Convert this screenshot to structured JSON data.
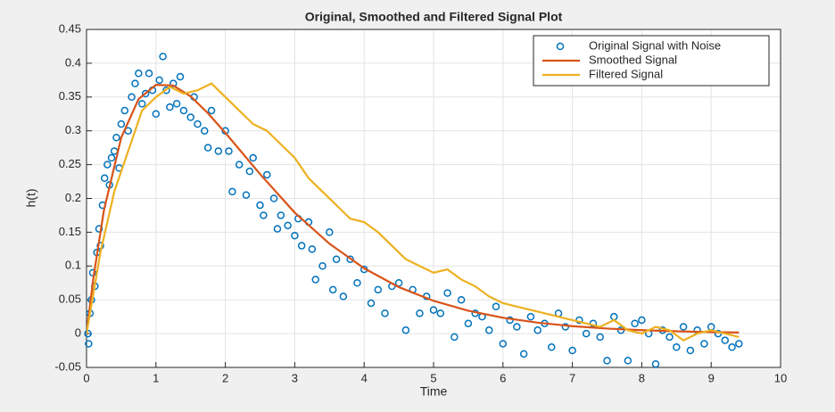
{
  "chart_data": {
    "type": "line",
    "title": "Original, Smoothed and Filtered Signal Plot",
    "xlabel": "Time",
    "ylabel": "h(t)",
    "xlim": [
      0,
      10
    ],
    "ylim": [
      -0.05,
      0.45
    ],
    "xticks": [
      0,
      1,
      2,
      3,
      4,
      5,
      6,
      7,
      8,
      9,
      10
    ],
    "yticks": [
      -0.05,
      0,
      0.05,
      0.1,
      0.15,
      0.2,
      0.25,
      0.3,
      0.35,
      0.4,
      0.45
    ],
    "grid": true,
    "legend": "northeast",
    "series": [
      {
        "name": "Original Signal with Noise",
        "color": "#0072bd",
        "marker": "o",
        "x": [
          0.02,
          0.03,
          0.05,
          0.07,
          0.09,
          0.12,
          0.15,
          0.18,
          0.2,
          0.23,
          0.26,
          0.3,
          0.33,
          0.36,
          0.4,
          0.43,
          0.47,
          0.5,
          0.55,
          0.6,
          0.65,
          0.7,
          0.75,
          0.8,
          0.85,
          0.9,
          0.95,
          1.0,
          1.05,
          1.1,
          1.15,
          1.2,
          1.25,
          1.3,
          1.35,
          1.4,
          1.5,
          1.55,
          1.6,
          1.7,
          1.75,
          1.8,
          1.9,
          2.0,
          2.05,
          2.1,
          2.2,
          2.3,
          2.35,
          2.4,
          2.5,
          2.55,
          2.6,
          2.7,
          2.75,
          2.8,
          2.9,
          3.0,
          3.05,
          3.1,
          3.2,
          3.25,
          3.3,
          3.4,
          3.5,
          3.55,
          3.6,
          3.7,
          3.8,
          3.9,
          4.0,
          4.1,
          4.2,
          4.3,
          4.4,
          4.5,
          4.6,
          4.7,
          4.8,
          4.9,
          5.0,
          5.1,
          5.2,
          5.3,
          5.4,
          5.5,
          5.6,
          5.7,
          5.8,
          5.9,
          6.0,
          6.1,
          6.2,
          6.3,
          6.4,
          6.5,
          6.6,
          6.7,
          6.8,
          6.9,
          7.0,
          7.1,
          7.2,
          7.3,
          7.4,
          7.5,
          7.6,
          7.7,
          7.8,
          7.9,
          8.0,
          8.1,
          8.2,
          8.3,
          8.4,
          8.5,
          8.6,
          8.7,
          8.8,
          8.9,
          9.0,
          9.1,
          9.2,
          9.3,
          9.4
        ],
        "values": [
          0.0,
          -0.015,
          0.03,
          0.05,
          0.09,
          0.07,
          0.12,
          0.155,
          0.13,
          0.19,
          0.23,
          0.25,
          0.22,
          0.26,
          0.27,
          0.29,
          0.245,
          0.31,
          0.33,
          0.3,
          0.35,
          0.37,
          0.385,
          0.34,
          0.355,
          0.385,
          0.36,
          0.325,
          0.375,
          0.41,
          0.36,
          0.335,
          0.37,
          0.34,
          0.38,
          0.33,
          0.32,
          0.35,
          0.31,
          0.3,
          0.275,
          0.33,
          0.27,
          0.3,
          0.27,
          0.21,
          0.25,
          0.205,
          0.24,
          0.26,
          0.19,
          0.175,
          0.235,
          0.2,
          0.155,
          0.175,
          0.16,
          0.145,
          0.17,
          0.13,
          0.165,
          0.125,
          0.08,
          0.1,
          0.15,
          0.065,
          0.11,
          0.055,
          0.11,
          0.075,
          0.095,
          0.045,
          0.065,
          0.03,
          0.07,
          0.075,
          0.005,
          0.065,
          0.03,
          0.055,
          0.035,
          0.03,
          0.06,
          -0.005,
          0.05,
          0.015,
          0.03,
          0.025,
          0.005,
          0.04,
          -0.015,
          0.02,
          0.01,
          -0.03,
          0.025,
          0.005,
          0.015,
          -0.02,
          0.03,
          0.01,
          -0.025,
          0.02,
          0.0,
          0.015,
          -0.005,
          -0.04,
          0.025,
          0.005,
          -0.04,
          0.015,
          0.02,
          0.0,
          -0.045,
          0.005,
          -0.005,
          -0.02,
          0.01,
          -0.025,
          0.005,
          -0.015,
          0.01,
          0.0,
          -0.01,
          -0.02,
          -0.015
        ]
      },
      {
        "name": "Smoothed Signal",
        "color": "#d95319",
        "x": [
          0,
          0.1,
          0.25,
          0.5,
          0.75,
          1.0,
          1.25,
          1.5,
          1.75,
          2.0,
          2.5,
          3.0,
          3.5,
          4.0,
          4.5,
          5.0,
          5.5,
          6.0,
          6.5,
          7.0,
          7.5,
          8.0,
          8.5,
          9.0,
          9.4
        ],
        "values": [
          0,
          0.0835,
          0.182,
          0.29,
          0.347,
          0.368,
          0.367,
          0.351,
          0.326,
          0.297,
          0.236,
          0.179,
          0.133,
          0.0966,
          0.0688,
          0.0485,
          0.0339,
          0.0235,
          0.0162,
          0.011,
          0.0075,
          0.0051,
          0.0034,
          0.0023,
          0.0016
        ]
      },
      {
        "name": "Filtered Signal",
        "color": "#edb120",
        "x": [
          0,
          0.2,
          0.4,
          0.6,
          0.8,
          1.0,
          1.2,
          1.4,
          1.6,
          1.8,
          2.0,
          2.2,
          2.4,
          2.6,
          2.8,
          3.0,
          3.2,
          3.4,
          3.6,
          3.8,
          4.0,
          4.2,
          4.4,
          4.6,
          4.8,
          5.0,
          5.2,
          5.4,
          5.6,
          5.8,
          6.0,
          6.2,
          6.4,
          6.6,
          6.8,
          7.0,
          7.2,
          7.4,
          7.6,
          7.8,
          8.0,
          8.2,
          8.4,
          8.6,
          8.8,
          9.0,
          9.2,
          9.4
        ],
        "values": [
          0,
          0.12,
          0.21,
          0.27,
          0.33,
          0.35,
          0.365,
          0.355,
          0.36,
          0.37,
          0.35,
          0.33,
          0.31,
          0.3,
          0.28,
          0.26,
          0.23,
          0.21,
          0.19,
          0.17,
          0.165,
          0.15,
          0.13,
          0.11,
          0.1,
          0.09,
          0.095,
          0.08,
          0.07,
          0.055,
          0.045,
          0.04,
          0.035,
          0.03,
          0.025,
          0.02,
          0.015,
          0.01,
          0.02,
          0.005,
          0.0,
          0.01,
          0.005,
          -0.01,
          0.0,
          0.005,
          0.0,
          -0.005
        ]
      }
    ]
  }
}
